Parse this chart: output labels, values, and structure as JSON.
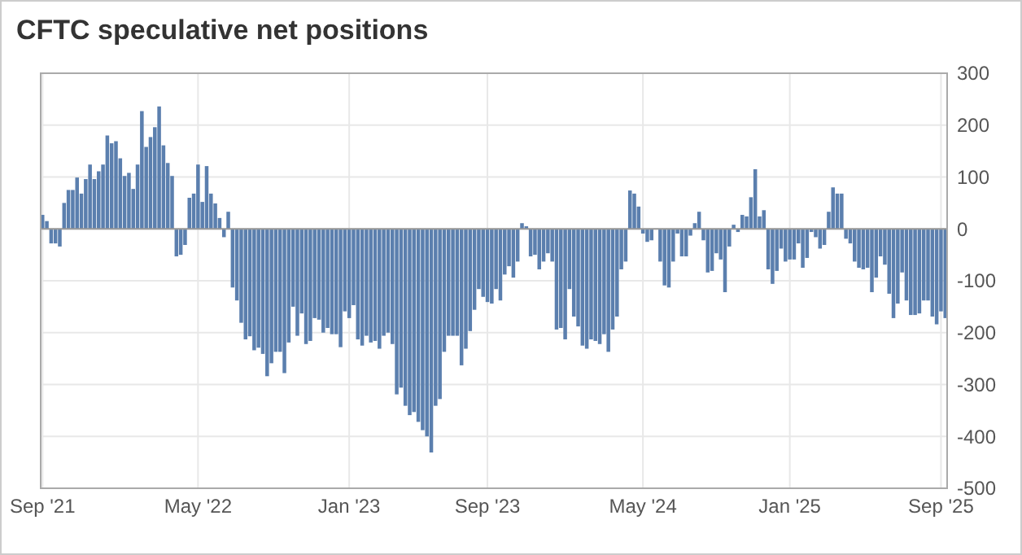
{
  "chart_data": {
    "type": "bar",
    "title": "CFTC speculative net positions",
    "categories": [
      "Sep '21",
      null,
      null,
      null,
      null,
      null,
      null,
      null,
      null,
      null,
      null,
      null,
      null,
      null,
      null,
      null,
      null,
      null,
      null,
      null,
      null,
      null,
      null,
      null,
      null,
      null,
      null,
      null,
      null,
      null,
      null,
      null,
      null,
      null,
      null,
      null,
      "May '22",
      null,
      null,
      null,
      null,
      null,
      null,
      null,
      null,
      null,
      null,
      null,
      null,
      null,
      null,
      null,
      null,
      null,
      null,
      null,
      null,
      null,
      null,
      null,
      null,
      null,
      null,
      null,
      null,
      null,
      null,
      null,
      null,
      null,
      null,
      "Jan '23",
      null,
      null,
      null,
      null,
      null,
      null,
      null,
      null,
      null,
      null,
      null,
      null,
      null,
      null,
      null,
      null,
      null,
      null,
      null,
      null,
      null,
      null,
      null,
      null,
      null,
      null,
      null,
      null,
      null,
      null,
      null,
      "Sep '23",
      null,
      null,
      null,
      null,
      null,
      null,
      null,
      null,
      null,
      null,
      null,
      null,
      null,
      null,
      null,
      null,
      null,
      null,
      null,
      null,
      null,
      null,
      null,
      null,
      null,
      null,
      null,
      null,
      null,
      null,
      null,
      null,
      null,
      null,
      null,
      "May '24",
      null,
      null,
      null,
      null,
      null,
      null,
      null,
      null,
      null,
      null,
      null,
      null,
      null,
      null,
      null,
      null,
      null,
      null,
      null,
      null,
      null,
      null,
      null,
      null,
      null,
      null,
      null,
      null,
      null,
      null,
      null,
      null,
      null,
      "Jan '25",
      null,
      null,
      null,
      null,
      null,
      null,
      null,
      null,
      null,
      null,
      null,
      null,
      null,
      null,
      null,
      null,
      null,
      null,
      null,
      null,
      null,
      null,
      null,
      null,
      null,
      null,
      null,
      null,
      null,
      null,
      null,
      null,
      null,
      null,
      "Sep '25",
      null
    ],
    "values": [
      27,
      15,
      -28,
      -28,
      -34,
      50,
      75,
      75,
      99,
      68,
      96,
      124,
      96,
      111,
      124,
      180,
      165,
      169,
      136,
      102,
      108,
      77,
      124,
      227,
      158,
      177,
      196,
      236,
      161,
      127,
      102,
      -53,
      -50,
      -31,
      60,
      68,
      124,
      52,
      121,
      68,
      49,
      21,
      -16,
      33,
      -113,
      -138,
      -181,
      -213,
      -207,
      -234,
      -229,
      -241,
      -284,
      -259,
      -237,
      -237,
      -278,
      -219,
      -150,
      -206,
      -163,
      -222,
      -216,
      -172,
      -175,
      -200,
      -191,
      -203,
      -203,
      -228,
      -159,
      -172,
      -147,
      -213,
      -225,
      -206,
      -219,
      -216,
      -231,
      -206,
      -200,
      -222,
      -319,
      -306,
      -341,
      -359,
      -353,
      -372,
      -388,
      -400,
      -431,
      -341,
      -328,
      -237,
      -206,
      -206,
      -206,
      -263,
      -231,
      -197,
      -156,
      -116,
      -131,
      -141,
      -144,
      -116,
      -138,
      -88,
      -72,
      -94,
      -63,
      11,
      5,
      -53,
      -50,
      -78,
      -63,
      -47,
      -63,
      -194,
      -191,
      -213,
      -116,
      -169,
      -188,
      -225,
      -231,
      -213,
      -216,
      -222,
      -203,
      -237,
      -194,
      -169,
      -78,
      -63,
      74,
      68,
      43,
      -9,
      -25,
      -22,
      null,
      -63,
      -109,
      -113,
      -63,
      -9,
      -53,
      -53,
      -13,
      11,
      33,
      -22,
      -84,
      -81,
      -47,
      -59,
      -122,
      -34,
      8,
      -6,
      27,
      24,
      61,
      115,
      24,
      36,
      -78,
      -106,
      -81,
      -38,
      -63,
      -59,
      -59,
      -28,
      -75,
      -56,
      -6,
      -16,
      -38,
      -31,
      33,
      80,
      68,
      68,
      -19,
      -28,
      -63,
      -75,
      -78,
      -75,
      -122,
      -94,
      -53,
      -69,
      -125,
      -172,
      -144,
      -84,
      -138,
      -166,
      -166,
      -163,
      -138,
      -138,
      -169,
      -184,
      -159,
      -172
    ],
    "color": "#5b7fae",
    "ylim": [
      -500,
      300
    ],
    "yticks": [
      -500,
      -400,
      -300,
      -200,
      -100,
      0,
      100,
      200,
      300
    ],
    "grid": true
  }
}
